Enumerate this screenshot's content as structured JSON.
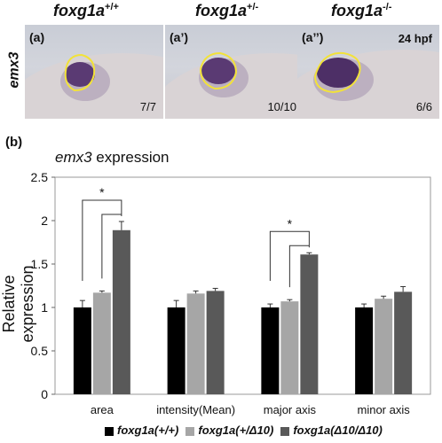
{
  "figure": {
    "top_labels": [
      "foxg1a",
      "foxg1a",
      "foxg1a"
    ],
    "top_sups": [
      "+/+",
      "+/-",
      "-/-"
    ],
    "side_label": "emx3",
    "panels": [
      {
        "tag": "(a)",
        "count": "7/7",
        "hpf": ""
      },
      {
        "tag": "(a’)",
        "count": "10/10",
        "hpf": ""
      },
      {
        "tag": "(a’’)",
        "count": "6/6",
        "hpf": "24 hpf"
      }
    ],
    "panel_b_tag": "(b)",
    "title_gene": "emx3",
    "title_rest": " expression",
    "significance_mark": "*"
  },
  "chart_data": {
    "type": "bar",
    "ylabel": "Relative expression",
    "ylim": [
      0,
      2.5
    ],
    "yticks": [
      "0",
      "0.5",
      "1",
      "1.5",
      "2",
      "2.5"
    ],
    "grid": false,
    "legend_position": "bottom",
    "categories": [
      "area",
      "intensity(Mean)",
      "major axis",
      "minor axis"
    ],
    "series": [
      {
        "name": "foxg1a(+/+)",
        "color": "#000000",
        "values": [
          1.0,
          1.0,
          1.0,
          1.0
        ],
        "errors": [
          0.08,
          0.08,
          0.04,
          0.04
        ]
      },
      {
        "name": "foxg1a(+/Δ10)",
        "color": "#a6a6a6",
        "values": [
          1.17,
          1.16,
          1.07,
          1.1
        ],
        "errors": [
          0.02,
          0.03,
          0.02,
          0.03
        ]
      },
      {
        "name": "foxg1a(Δ10/Δ10)",
        "color": "#595959",
        "values": [
          1.89,
          1.19,
          1.61,
          1.18
        ],
        "errors": [
          0.1,
          0.03,
          0.02,
          0.06
        ]
      }
    ],
    "significance": [
      {
        "category": "area",
        "label": "*"
      },
      {
        "category": "major axis",
        "label": "*"
      }
    ]
  }
}
